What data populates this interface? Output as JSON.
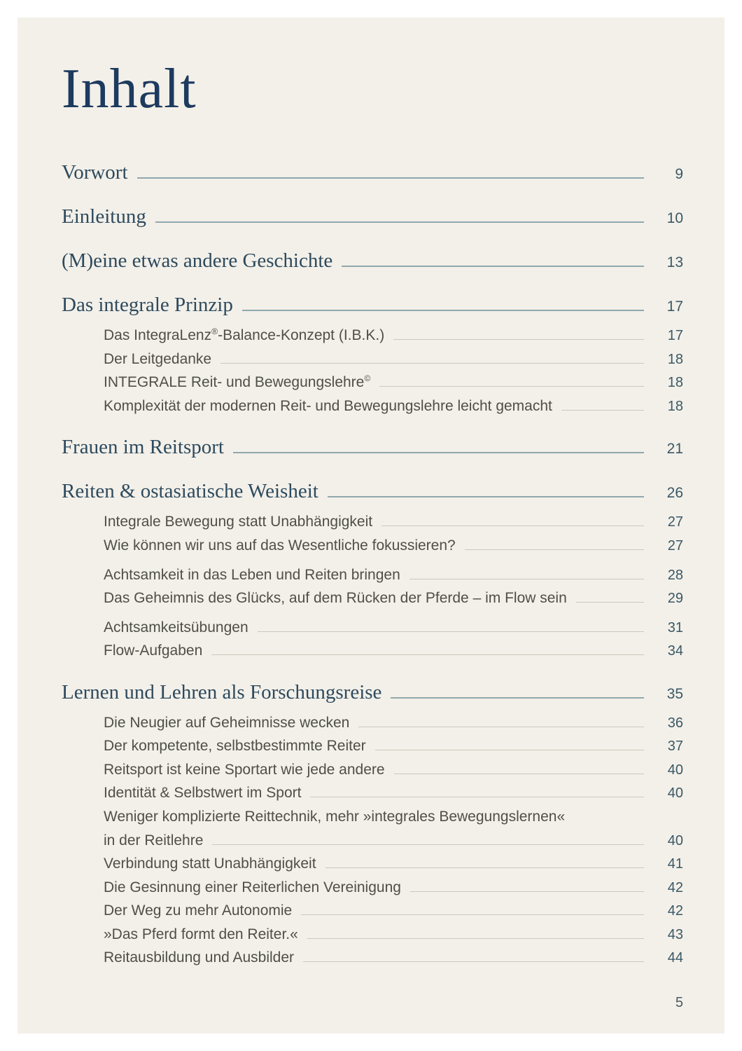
{
  "document": {
    "title": "Inhalt",
    "footer": {
      "page_number": "5"
    }
  },
  "colors": {
    "page_background": "#f3f0e9",
    "outer_margin": "#ffffff",
    "title_navy": "#1d3a5f",
    "chapter_heading": "#2d4a5e",
    "sub_item_text": "#4f4e49",
    "page_number": "#3a5866",
    "leader_line_chapter": "#8fa8ae",
    "leader_line_sub": "#ccc8bc"
  },
  "toc": {
    "entries": [
      {
        "label": "Vorwort",
        "page": "9",
        "level": "chapter"
      },
      {
        "label": "Einleitung",
        "page": "10",
        "level": "chapter"
      },
      {
        "label": "(M)eine etwas andere Geschichte",
        "page": "13",
        "level": "chapter"
      },
      {
        "label": "Das integrale Prinzip",
        "page": "17",
        "level": "chapter"
      },
      {
        "label": "Das IntegraLenz®-Balance-Konzept (I.B.K.)",
        "page": "17",
        "level": "sub",
        "first_sub": true
      },
      {
        "label": "Der Leitgedanke",
        "page": "18",
        "level": "sub"
      },
      {
        "label": "INTEGRALE Reit- und Bewegungslehre©",
        "page": "18",
        "level": "sub"
      },
      {
        "label": "Komplexität der modernen Reit- und Bewegungslehre leicht gemacht",
        "page": "18",
        "level": "sub"
      },
      {
        "label": "Frauen im Reitsport",
        "page": "21",
        "level": "chapter"
      },
      {
        "label": "Reiten & ostasiatische Weisheit",
        "page": "26",
        "level": "chapter"
      },
      {
        "label": "Integrale Bewegung statt Unabhängigkeit",
        "page": "27",
        "level": "sub",
        "first_sub": true
      },
      {
        "label": "Wie können wir uns auf das Wesentliche fokussieren?",
        "page": "27",
        "level": "sub"
      },
      {
        "label": "Achtsamkeit in das Leben und Reiten bringen",
        "page": "28",
        "level": "sub",
        "spaced": true
      },
      {
        "label": "Das Geheimnis des Glücks, auf dem Rücken der Pferde – im Flow sein",
        "page": "29",
        "level": "sub"
      },
      {
        "label": "Achtsamkeitsübungen",
        "page": "31",
        "level": "sub",
        "spaced": true
      },
      {
        "label": "Flow-Aufgaben",
        "page": "34",
        "level": "sub"
      },
      {
        "label": "Lernen und Lehren als Forschungsreise",
        "page": "35",
        "level": "chapter"
      },
      {
        "label": "Die Neugier auf Geheimnisse wecken",
        "page": "36",
        "level": "sub",
        "first_sub": true
      },
      {
        "label": "Der kompetente, selbstbestimmte Reiter",
        "page": "37",
        "level": "sub"
      },
      {
        "label": "Reitsport ist keine Sportart wie jede andere",
        "page": "40",
        "level": "sub"
      },
      {
        "label": "Identität & Selbstwert im Sport",
        "page": "40",
        "level": "sub"
      },
      {
        "label": "Weniger komplizierte Reittechnik, mehr »integrales Bewegungslernen«",
        "page": null,
        "level": "sub",
        "no_leader": true
      },
      {
        "label": "in der Reitlehre",
        "page": "40",
        "level": "sub"
      },
      {
        "label": "Verbindung statt Unabhängigkeit",
        "page": "41",
        "level": "sub"
      },
      {
        "label": "Die Gesinnung einer Reiterlichen Vereinigung",
        "page": "42",
        "level": "sub"
      },
      {
        "label": "Der Weg zu mehr Autonomie",
        "page": "42",
        "level": "sub"
      },
      {
        "label": "»Das Pferd formt den Reiter.«",
        "page": "43",
        "level": "sub"
      },
      {
        "label": "Reitausbildung und Ausbilder",
        "page": "44",
        "level": "sub"
      }
    ]
  }
}
